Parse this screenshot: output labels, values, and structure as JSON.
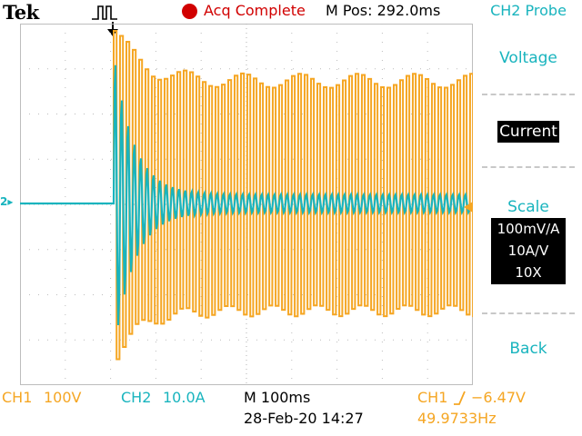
{
  "header": {
    "brand": "Tek",
    "acquisition_status": "Acq Complete",
    "main_position": "M Pos: 292.0ms"
  },
  "side_menu": {
    "title": "CH2 Probe",
    "items": [
      {
        "label": "Voltage",
        "selected": false
      },
      {
        "label": "Current",
        "selected": true
      },
      {
        "label": "Scale",
        "selected": false
      },
      {
        "label": "Back",
        "selected": false
      }
    ],
    "scale_values": [
      "100mV/A",
      "10A/V",
      "10X"
    ]
  },
  "markers": {
    "ch2_ground": "2"
  },
  "footer": {
    "ch1_label": "CH1",
    "ch1_scale": "100V",
    "ch2_label": "CH2",
    "ch2_scale": "10.0A",
    "timebase": "M 100ms",
    "datetime": "28-Feb-20 14:27",
    "trigger_source": "CH1",
    "trigger_level": "−6.47V",
    "frequency": "49.9733Hz"
  },
  "colors": {
    "ch1": "#f5a623",
    "ch2": "#19b4be",
    "acq": "#d10000"
  },
  "icons": {
    "trigger_shape": "trigger-pulse-icon",
    "trigger_position": "trigger-position-arrow-icon",
    "trigger_slope": "rising-edge-icon",
    "ch1_level": "ch1-level-arrow-icon"
  }
}
